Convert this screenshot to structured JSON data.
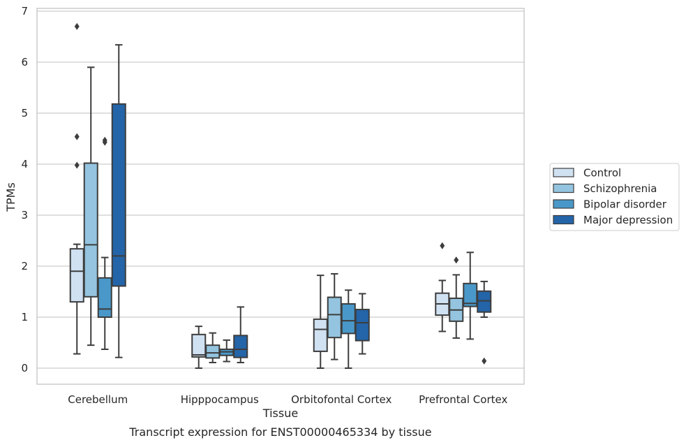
{
  "chart_data": {
    "type": "box",
    "title": "",
    "caption": "Transcript expression for ENST00000465334 by tissue",
    "xlabel": "Tissue",
    "ylabel": "TPMs",
    "ylim": [
      -0.3,
      7.05
    ],
    "yticks": [
      0,
      1,
      2,
      3,
      4,
      5,
      6,
      7
    ],
    "grid": "horizontal",
    "legend_position": "right",
    "categories": [
      "Cerebellum",
      "Hipppocampus",
      "Orbitofontal Cortex",
      "Prefrontal Cortex"
    ],
    "series": [
      {
        "name": "Control",
        "color": "#d0e1f2",
        "boxes": [
          {
            "whislo": 0.28,
            "q1": 1.3,
            "med": 1.9,
            "q3": 2.34,
            "whishi": 2.43,
            "fliers": [
              3.98,
              4.54,
              6.7
            ]
          },
          {
            "whislo": 0.0,
            "q1": 0.22,
            "med": 0.26,
            "q3": 0.66,
            "whishi": 0.82,
            "fliers": []
          },
          {
            "whislo": 0.0,
            "q1": 0.33,
            "med": 0.76,
            "q3": 0.96,
            "whishi": 1.82,
            "fliers": []
          },
          {
            "whislo": 0.72,
            "q1": 1.04,
            "med": 1.26,
            "q3": 1.47,
            "whishi": 1.72,
            "fliers": [
              2.4
            ]
          }
        ]
      },
      {
        "name": "Schizophrenia",
        "color": "#94c4df",
        "boxes": [
          {
            "whislo": 0.45,
            "q1": 1.4,
            "med": 2.42,
            "q3": 4.02,
            "whishi": 5.9,
            "fliers": []
          },
          {
            "whislo": 0.11,
            "q1": 0.2,
            "med": 0.3,
            "q3": 0.45,
            "whishi": 0.69,
            "fliers": []
          },
          {
            "whislo": 0.17,
            "q1": 0.6,
            "med": 1.05,
            "q3": 1.39,
            "whishi": 1.85,
            "fliers": []
          },
          {
            "whislo": 0.59,
            "q1": 0.92,
            "med": 1.14,
            "q3": 1.37,
            "whishi": 1.83,
            "fliers": [
              2.12
            ]
          }
        ]
      },
      {
        "name": "Bipolar disorder",
        "color": "#4a98c9",
        "boxes": [
          {
            "whislo": 0.37,
            "q1": 1.0,
            "med": 1.16,
            "q3": 1.77,
            "whishi": 2.17,
            "fliers": [
              4.43,
              4.47
            ]
          },
          {
            "whislo": 0.13,
            "q1": 0.25,
            "med": 0.32,
            "q3": 0.37,
            "whishi": 0.55,
            "fliers": []
          },
          {
            "whislo": 0.0,
            "q1": 0.68,
            "med": 0.93,
            "q3": 1.26,
            "whishi": 1.53,
            "fliers": []
          },
          {
            "whislo": 0.57,
            "q1": 1.21,
            "med": 1.27,
            "q3": 1.66,
            "whishi": 2.27,
            "fliers": []
          }
        ]
      },
      {
        "name": "Major depression",
        "color": "#2464a8",
        "boxes": [
          {
            "whislo": 0.21,
            "q1": 1.61,
            "med": 2.2,
            "q3": 5.18,
            "whishi": 6.34,
            "fliers": []
          },
          {
            "whislo": 0.11,
            "q1": 0.21,
            "med": 0.37,
            "q3": 0.64,
            "whishi": 1.2,
            "fliers": []
          },
          {
            "whislo": 0.28,
            "q1": 0.54,
            "med": 0.89,
            "q3": 1.15,
            "whishi": 1.46,
            "fliers": []
          },
          {
            "whislo": 1.0,
            "q1": 1.1,
            "med": 1.32,
            "q3": 1.51,
            "whishi": 1.7,
            "fliers": [
              0.14
            ]
          }
        ]
      }
    ]
  }
}
